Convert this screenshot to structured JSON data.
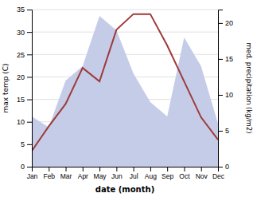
{
  "chart_data": {
    "type": "line",
    "categories": [
      "Jan",
      "Feb",
      "Mar",
      "Apr",
      "May",
      "Jun",
      "Jul",
      "Aug",
      "Sep",
      "Oct",
      "Nov",
      "Dec"
    ],
    "xlabel": "date (month)",
    "ylabel": "max temp (C)",
    "y2label": "med. precipitation (kg/m2)",
    "ylim": [
      0,
      35
    ],
    "yticks": [
      0,
      5,
      10,
      15,
      20,
      25,
      30,
      35
    ],
    "y2lim": [
      0,
      21.875
    ],
    "y2ticks": [
      0,
      5,
      10,
      15,
      20
    ],
    "grid": true,
    "series": [
      {
        "type": "area",
        "axis": "y2",
        "color": "#c5cce8",
        "values": [
          7.0,
          5.5,
          12.0,
          14.0,
          21.0,
          19.0,
          13.0,
          9.0,
          7.0,
          18.0,
          14.0,
          6.0
        ]
      },
      {
        "type": "line",
        "color": "#9e3a3a",
        "values": [
          3.5,
          9.0,
          14.0,
          22.0,
          19.0,
          30.5,
          34.0,
          34.0,
          27.0,
          19.0,
          11.0,
          6.0
        ]
      }
    ]
  }
}
